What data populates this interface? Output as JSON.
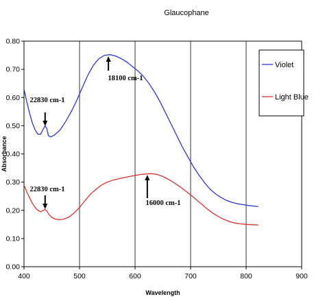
{
  "chart_data": {
    "type": "line",
    "title": "Glaucophane",
    "xlabel": "Wavelength",
    "ylabel": "Absorbance",
    "xlim": [
      400,
      900
    ],
    "ylim": [
      0,
      0.8
    ],
    "x_ticks": [
      "400",
      "500",
      "600",
      "700",
      "800",
      "900"
    ],
    "y_ticks": [
      "0.00",
      "0.10",
      "0.20",
      "0.30",
      "0.40",
      "0.50",
      "0.60",
      "0.70",
      "0.80"
    ],
    "grid": "vertical",
    "legend_position": "right",
    "series": [
      {
        "name": "Violet",
        "color": "#2b35e0",
        "points": [
          [
            400,
            0.63
          ],
          [
            405,
            0.585
          ],
          [
            410,
            0.545
          ],
          [
            415,
            0.51
          ],
          [
            420,
            0.485
          ],
          [
            425,
            0.47
          ],
          [
            430,
            0.47
          ],
          [
            435,
            0.49
          ],
          [
            438,
            0.5
          ],
          [
            441,
            0.49
          ],
          [
            444,
            0.465
          ],
          [
            448,
            0.46
          ],
          [
            455,
            0.467
          ],
          [
            465,
            0.485
          ],
          [
            475,
            0.515
          ],
          [
            485,
            0.55
          ],
          [
            495,
            0.59
          ],
          [
            505,
            0.635
          ],
          [
            515,
            0.68
          ],
          [
            525,
            0.715
          ],
          [
            535,
            0.738
          ],
          [
            545,
            0.75
          ],
          [
            555,
            0.752
          ],
          [
            565,
            0.747
          ],
          [
            575,
            0.738
          ],
          [
            585,
            0.726
          ],
          [
            595,
            0.71
          ],
          [
            605,
            0.695
          ],
          [
            615,
            0.675
          ],
          [
            625,
            0.65
          ],
          [
            635,
            0.62
          ],
          [
            645,
            0.585
          ],
          [
            655,
            0.545
          ],
          [
            665,
            0.505
          ],
          [
            675,
            0.465
          ],
          [
            685,
            0.425
          ],
          [
            695,
            0.39
          ],
          [
            705,
            0.355
          ],
          [
            715,
            0.325
          ],
          [
            725,
            0.298
          ],
          [
            735,
            0.275
          ],
          [
            745,
            0.258
          ],
          [
            755,
            0.245
          ],
          [
            765,
            0.235
          ],
          [
            775,
            0.228
          ],
          [
            785,
            0.223
          ],
          [
            795,
            0.22
          ],
          [
            805,
            0.217
          ],
          [
            815,
            0.215
          ],
          [
            822,
            0.213
          ]
        ]
      },
      {
        "name": "Light Blue",
        "color": "#e0302b",
        "points": [
          [
            400,
            0.29
          ],
          [
            405,
            0.265
          ],
          [
            410,
            0.245
          ],
          [
            415,
            0.225
          ],
          [
            420,
            0.21
          ],
          [
            425,
            0.2
          ],
          [
            430,
            0.195
          ],
          [
            435,
            0.2
          ],
          [
            438,
            0.203
          ],
          [
            441,
            0.198
          ],
          [
            445,
            0.185
          ],
          [
            450,
            0.175
          ],
          [
            455,
            0.17
          ],
          [
            462,
            0.167
          ],
          [
            470,
            0.168
          ],
          [
            480,
            0.175
          ],
          [
            490,
            0.19
          ],
          [
            500,
            0.21
          ],
          [
            510,
            0.235
          ],
          [
            520,
            0.258
          ],
          [
            530,
            0.275
          ],
          [
            540,
            0.29
          ],
          [
            550,
            0.3
          ],
          [
            560,
            0.307
          ],
          [
            570,
            0.312
          ],
          [
            580,
            0.316
          ],
          [
            590,
            0.32
          ],
          [
            600,
            0.324
          ],
          [
            610,
            0.327
          ],
          [
            620,
            0.329
          ],
          [
            630,
            0.33
          ],
          [
            640,
            0.327
          ],
          [
            650,
            0.32
          ],
          [
            660,
            0.31
          ],
          [
            670,
            0.298
          ],
          [
            680,
            0.285
          ],
          [
            690,
            0.27
          ],
          [
            700,
            0.255
          ],
          [
            710,
            0.238
          ],
          [
            720,
            0.222
          ],
          [
            730,
            0.205
          ],
          [
            740,
            0.19
          ],
          [
            750,
            0.178
          ],
          [
            760,
            0.168
          ],
          [
            770,
            0.16
          ],
          [
            780,
            0.155
          ],
          [
            790,
            0.152
          ],
          [
            800,
            0.15
          ],
          [
            810,
            0.149
          ],
          [
            822,
            0.148
          ]
        ]
      }
    ],
    "annotations": [
      {
        "text": "22830 cm-1",
        "x": 438,
        "y": 0.5,
        "series": "Violet"
      },
      {
        "text": "18100 cm-1",
        "x": 552,
        "y": 0.752,
        "series": "Violet"
      },
      {
        "text": "22830 cm-1",
        "x": 438,
        "y": 0.203,
        "series": "Light Blue"
      },
      {
        "text": "16000 cm-1",
        "x": 622,
        "y": 0.329,
        "series": "Light Blue"
      }
    ]
  }
}
